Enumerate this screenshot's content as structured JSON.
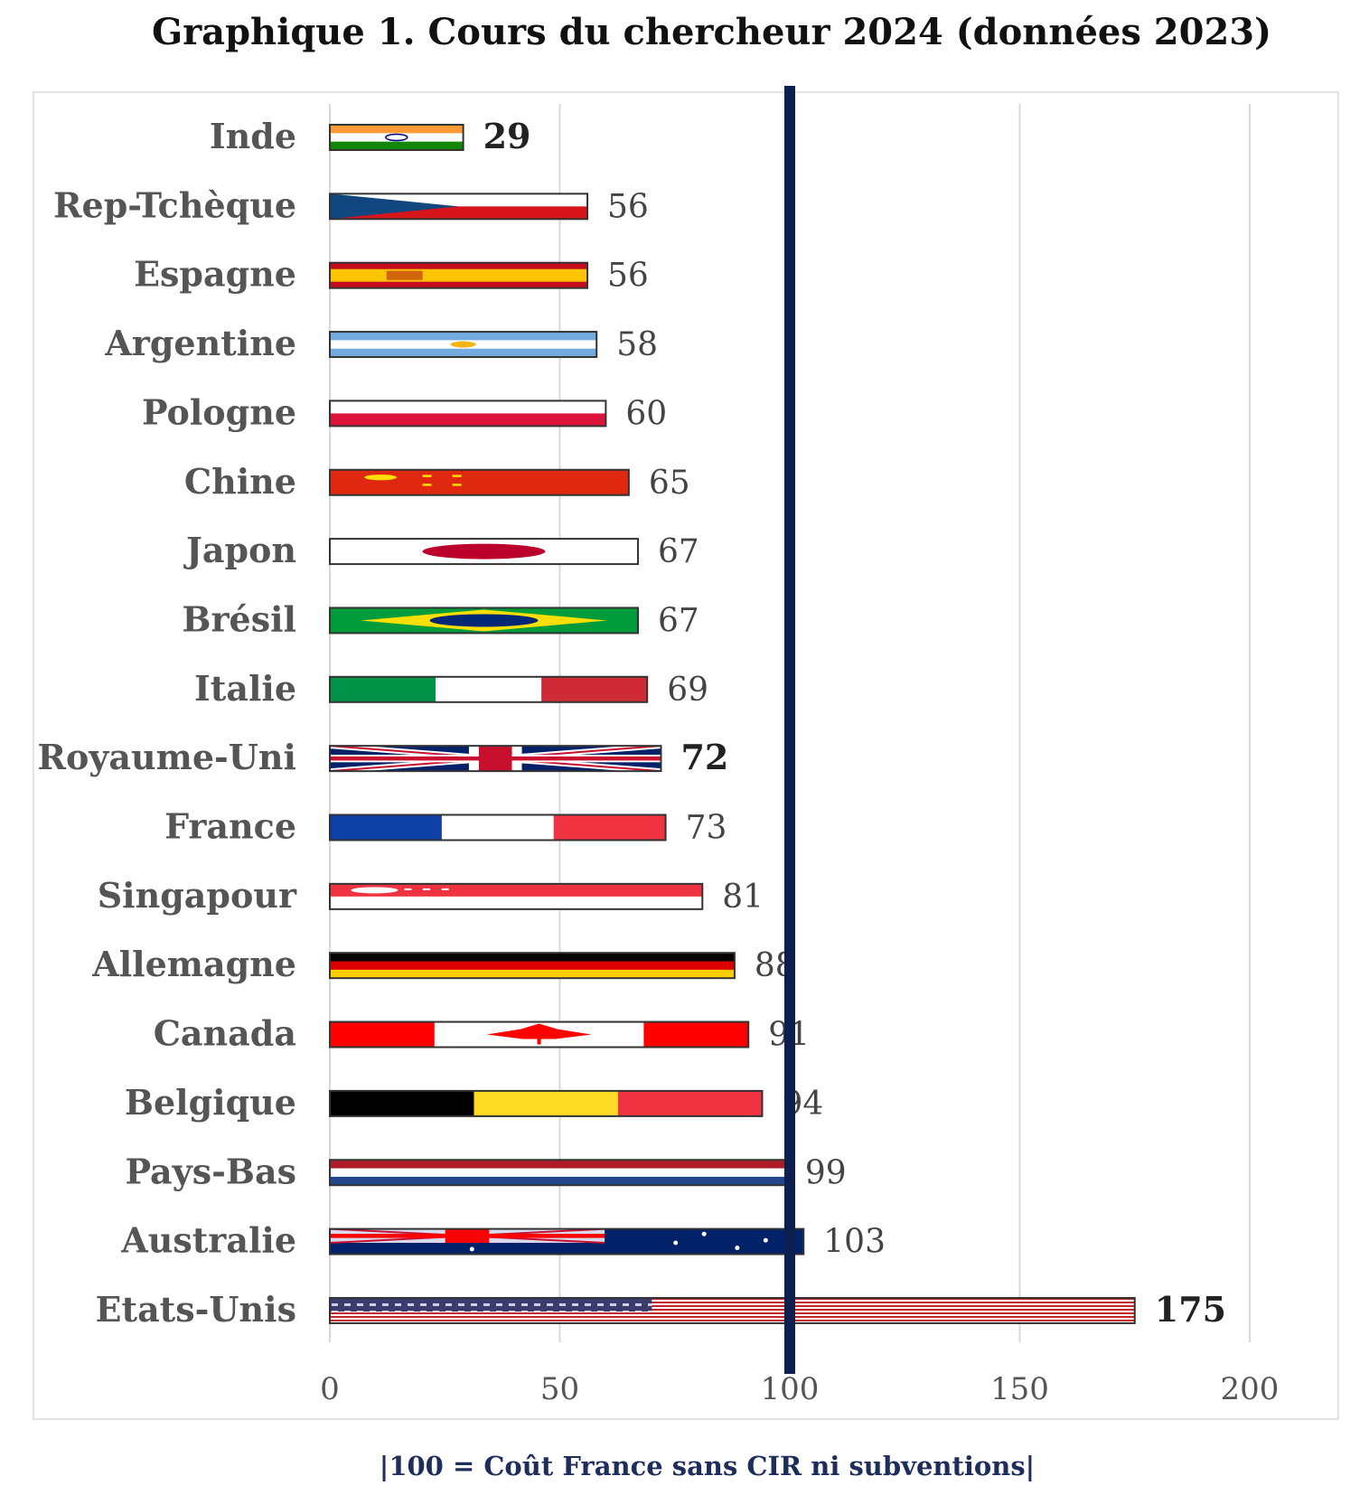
{
  "chart_data": {
    "type": "bar",
    "orientation": "horizontal",
    "title": "Graphique 1. Cours du chercheur 2024 (données 2023)",
    "categories": [
      "Inde",
      "Rep-Tchèque",
      "Espagne",
      "Argentine",
      "Pologne",
      "Chine",
      "Japon",
      "Brésil",
      "Italie",
      "Royaume-Uni",
      "France",
      "Singapour",
      "Allemagne",
      "Canada",
      "Belgique",
      "Pays-Bas",
      "Australie",
      "Etats-Unis"
    ],
    "values": [
      29,
      56,
      56,
      58,
      60,
      65,
      67,
      67,
      69,
      72,
      73,
      81,
      88,
      91,
      94,
      99,
      103,
      175
    ],
    "bold_value_labels": [
      "Inde",
      "Royaume-Uni",
      "Etats-Unis"
    ],
    "xlim": [
      0,
      200
    ],
    "xticks": [
      0,
      50,
      100,
      150,
      200
    ],
    "reference_line": {
      "value": 100,
      "color": "#0d1f4f"
    },
    "grid": true,
    "legend": "none",
    "footnote": "|100 = Coût France sans CIR ni subventions|",
    "bar_style": "national flags"
  }
}
